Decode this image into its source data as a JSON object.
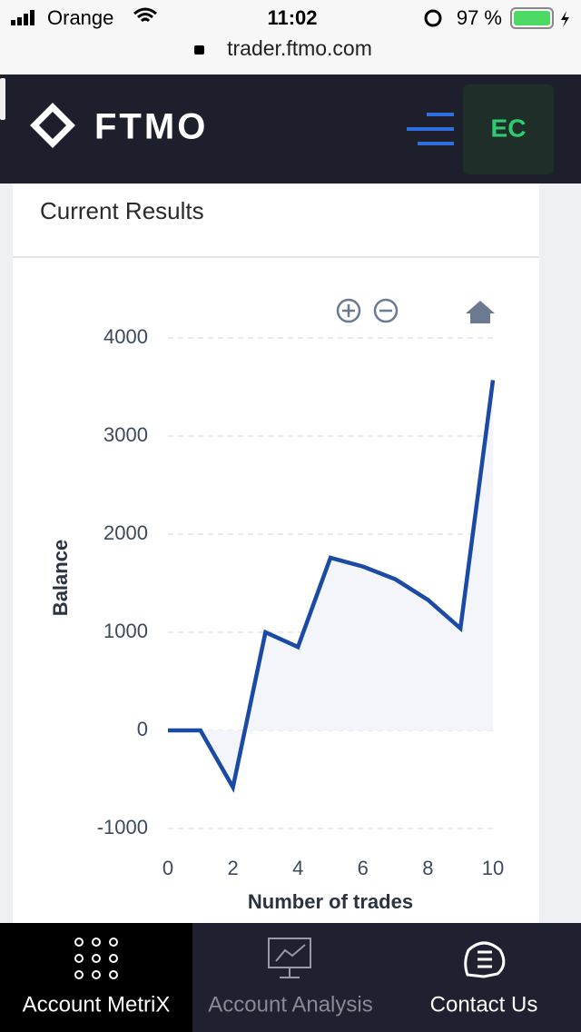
{
  "status_bar": {
    "carrier": "Orange",
    "time": "11:02",
    "battery": "97 %",
    "url": "trader.ftmo.com"
  },
  "header": {
    "logo": "FTMO",
    "avatar": "EC"
  },
  "card": {
    "title": "Current Results"
  },
  "chart_data": {
    "type": "line",
    "x_label": "Number of trades",
    "y_label": "Balance",
    "x": [
      0,
      1,
      2,
      3,
      4,
      5,
      6,
      7,
      8,
      9,
      10
    ],
    "series": [
      {
        "name": "Balance",
        "color": "#1a4aa3",
        "values": [
          0,
          0,
          -580,
          1000,
          850,
          1760,
          1670,
          1540,
          1330,
          1040,
          3570
        ]
      }
    ],
    "xlim": [
      0,
      10
    ],
    "xticks": [
      0,
      2,
      4,
      6,
      8,
      10
    ],
    "ylim": [
      -1000,
      4000
    ],
    "yticks": [
      -1000,
      0,
      1000,
      2000,
      3000,
      4000
    ],
    "grid": true
  },
  "nav": {
    "items": [
      "Account MetriX",
      "Account Analysis",
      "Contact Us"
    ]
  }
}
